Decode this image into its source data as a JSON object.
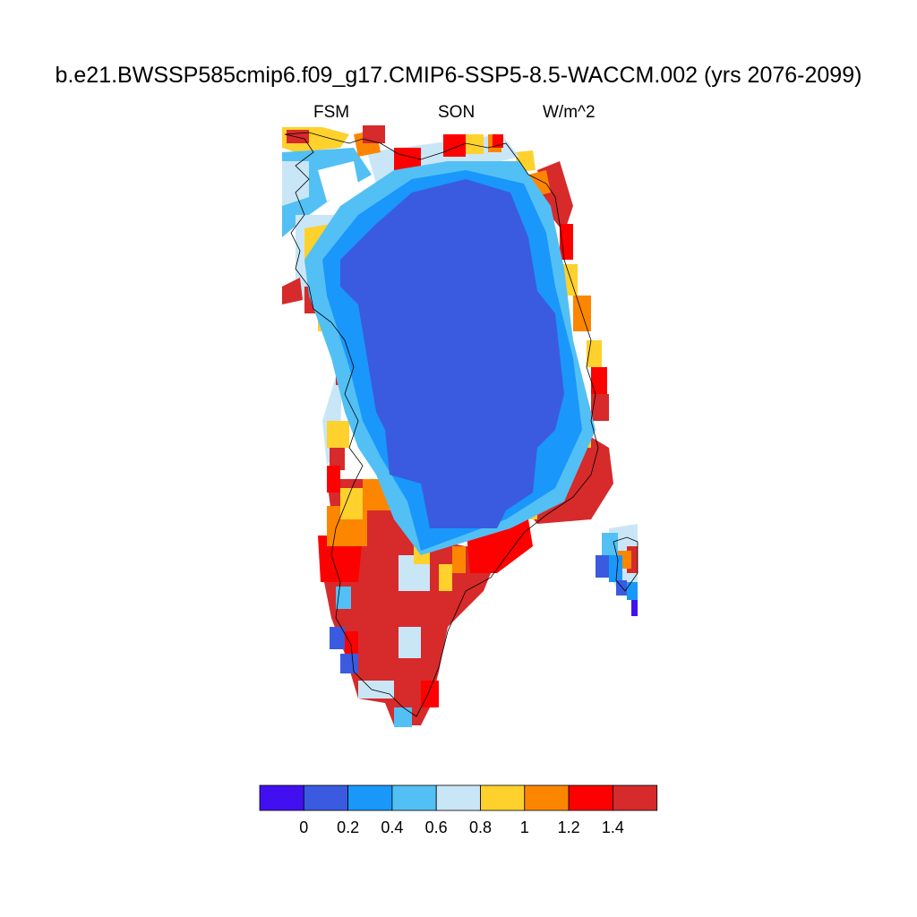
{
  "title": "b.e21.BWSSP585cmip6.f09_g17.CMIP6-SSP5-8.5-WACCM.002 (yrs 2076-2099)",
  "left_string": "FSM",
  "center_string": "SON",
  "right_string": "W/m^2",
  "region": "Greenland",
  "colorbar": {
    "colors": [
      "#4210f0",
      "#3a5be0",
      "#1a97fa",
      "#52c0f4",
      "#c9e6f7",
      "#fed12c",
      "#fd8600",
      "#fd0000",
      "#d62a2b"
    ],
    "tick_labels": [
      "0",
      "0.2",
      "0.4",
      "0.6",
      "0.8",
      "1",
      "1.2",
      "1.4"
    ]
  }
}
